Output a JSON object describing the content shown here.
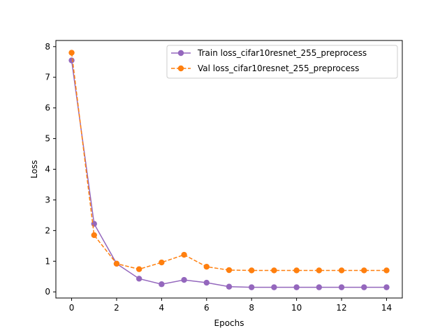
{
  "chart_data": {
    "type": "line",
    "xlabel": "Epochs",
    "ylabel": "Loss",
    "xlim": [
      -0.7,
      14.7
    ],
    "ylim": [
      -0.2,
      8.2
    ],
    "xticks": [
      0,
      2,
      4,
      6,
      8,
      10,
      12,
      14
    ],
    "yticks": [
      0,
      1,
      2,
      3,
      4,
      5,
      6,
      7,
      8
    ],
    "grid": false,
    "legend": "top-right",
    "x": [
      0,
      1,
      2,
      3,
      4,
      5,
      6,
      7,
      8,
      9,
      10,
      11,
      12,
      13,
      14
    ],
    "series": [
      {
        "name": "Train loss_cifar10resnet_255_preprocess",
        "color": "#9467bd",
        "style": "solid",
        "marker": "circle",
        "values": [
          7.55,
          2.22,
          0.92,
          0.43,
          0.25,
          0.39,
          0.3,
          0.17,
          0.15,
          0.15,
          0.15,
          0.15,
          0.15,
          0.15,
          0.15
        ]
      },
      {
        "name": "Val loss_cifar10resnet_255_preprocess",
        "color": "#ff7f0e",
        "style": "dashed",
        "marker": "circle",
        "values": [
          7.8,
          1.85,
          0.92,
          0.74,
          0.96,
          1.21,
          0.82,
          0.71,
          0.7,
          0.7,
          0.7,
          0.7,
          0.7,
          0.7,
          0.7
        ]
      }
    ]
  }
}
